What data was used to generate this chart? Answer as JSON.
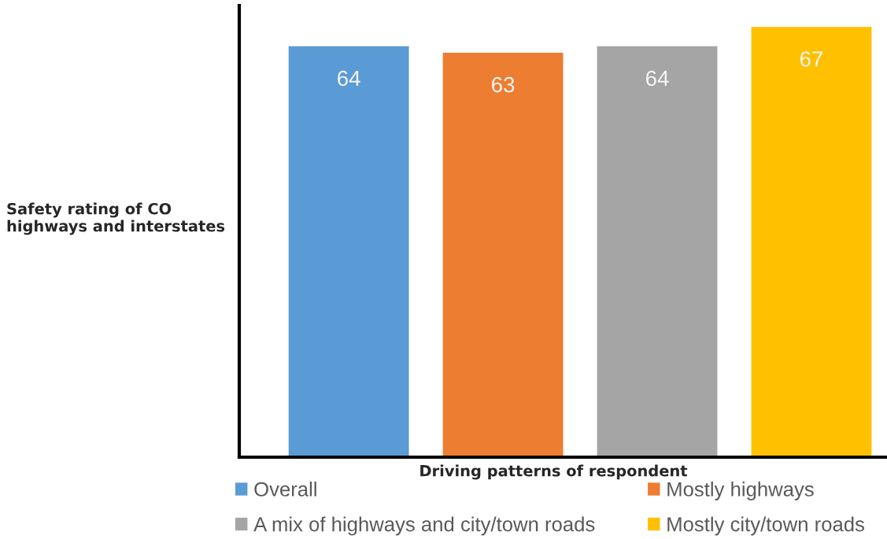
{
  "chart_data": {
    "type": "bar",
    "xlabel": "Driving patterns of respondent",
    "ylabel": "Safety rating of CO\nhighways and interstates",
    "categories": [
      null,
      null,
      null,
      null
    ],
    "stacked": true,
    "series": [
      {
        "name": "Overall",
        "color": "#5b9bd5",
        "values": [
          64,
          null,
          null,
          null
        ]
      },
      {
        "name": "Mostly highways",
        "color": "#ed7d31",
        "values": [
          null,
          63,
          null,
          null
        ]
      },
      {
        "name": "A mix of highways and city/town roads",
        "color": "#a5a5a5",
        "values": [
          null,
          null,
          64,
          null
        ]
      },
      {
        "name": "Mostly city/town roads",
        "color": "#ffc000",
        "values": [
          null,
          null,
          null,
          67
        ]
      }
    ],
    "data_labels": true,
    "legend": "bottom"
  }
}
